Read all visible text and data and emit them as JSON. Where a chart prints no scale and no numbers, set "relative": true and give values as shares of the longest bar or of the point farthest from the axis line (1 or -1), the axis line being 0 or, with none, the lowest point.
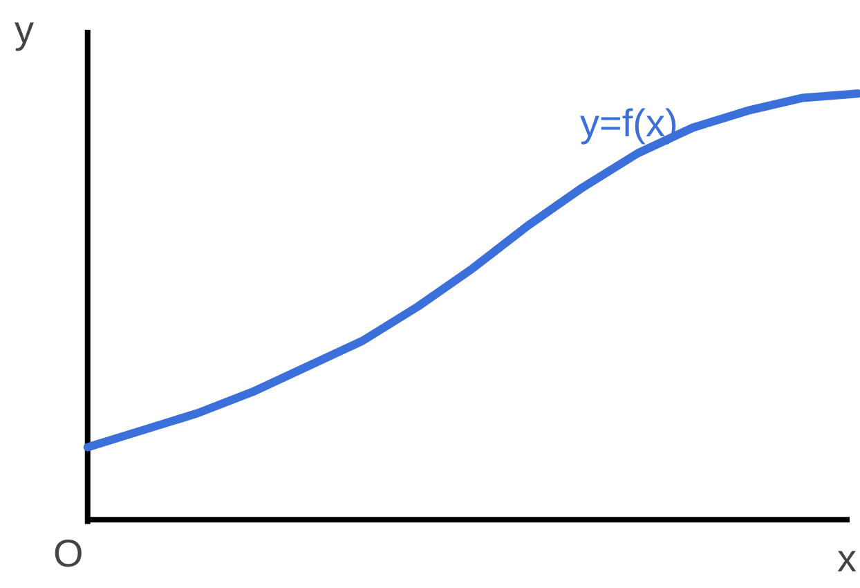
{
  "chart_data": {
    "type": "line",
    "relative": true,
    "xlabel": "x",
    "ylabel": "y",
    "annotations": [
      "O"
    ],
    "categories": [
      null,
      null,
      null,
      null,
      null,
      null,
      null,
      null,
      null,
      null,
      null,
      null,
      null,
      null,
      null
    ],
    "series": [
      {
        "name": "y=f(x)",
        "color": "#3b6fd9",
        "values": [
          0.17,
          0.21,
          0.25,
          0.3,
          0.36,
          0.42,
          0.5,
          0.59,
          0.69,
          0.78,
          0.86,
          0.92,
          0.96,
          0.99,
          1.0
        ]
      }
    ]
  }
}
